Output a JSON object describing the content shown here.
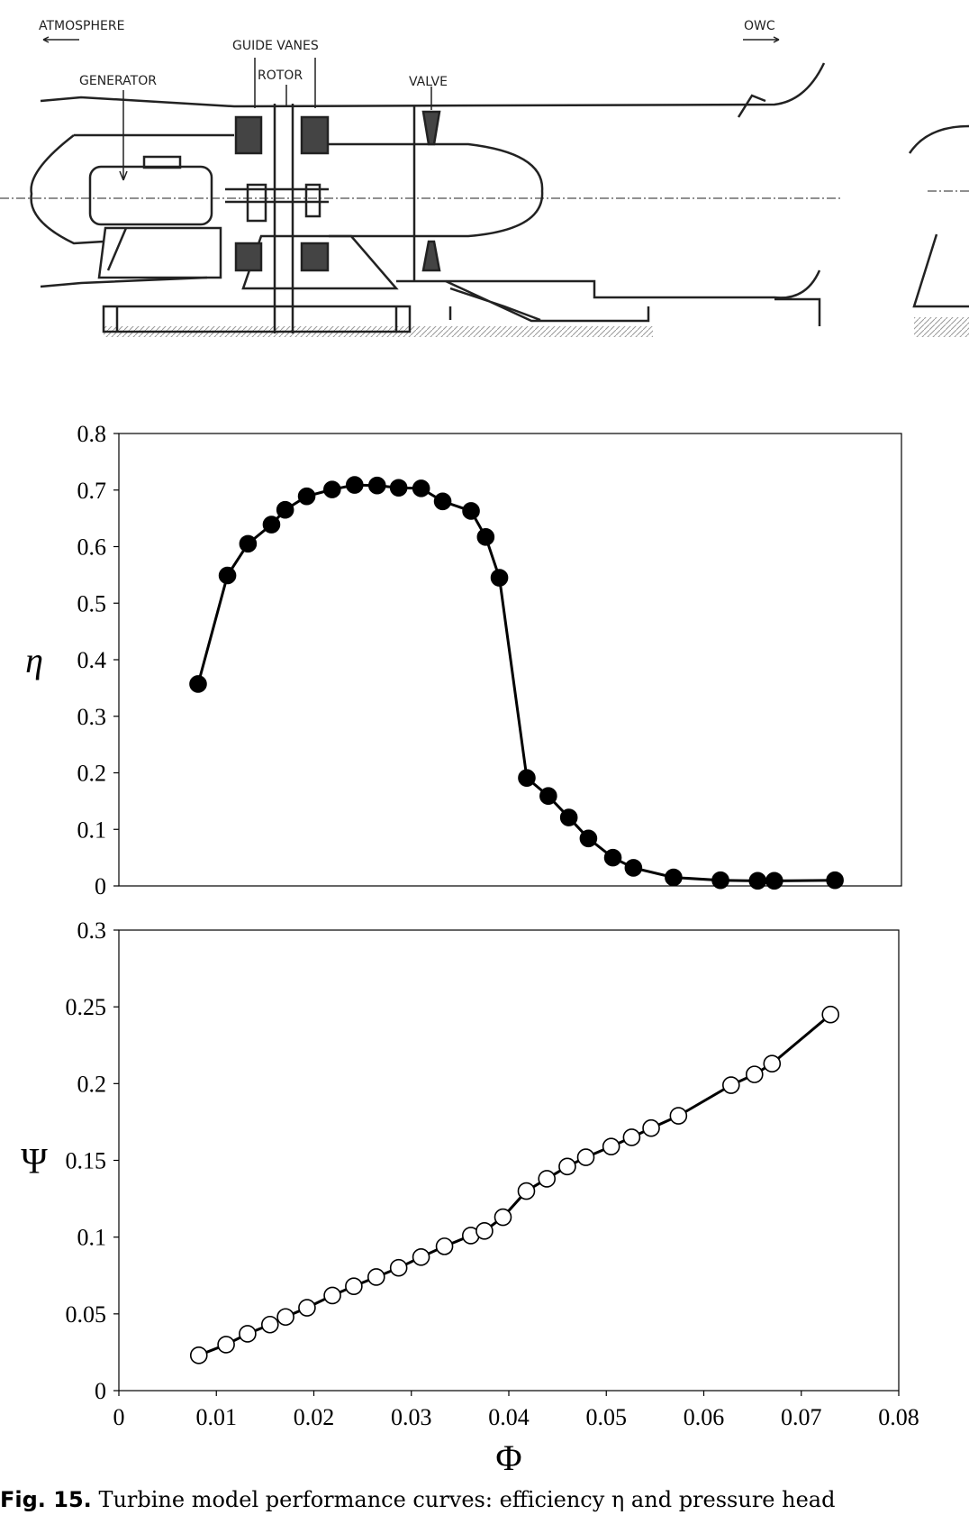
{
  "diagram": {
    "labels": {
      "atmosphere": "ATMOSPHERE",
      "owc": "OWC",
      "guide_vanes": "GUIDE VANES",
      "generator": "GENERATOR",
      "rotor": "ROTOR",
      "valve": "VALVE"
    }
  },
  "chart_data": [
    {
      "type": "line",
      "y_label": "η",
      "xlim": [
        0,
        0.08
      ],
      "ylim": [
        0,
        0.8
      ],
      "yticks": [
        0,
        0.1,
        0.2,
        0.3,
        0.4,
        0.5,
        0.6,
        0.7,
        0.8
      ],
      "marker": "filled",
      "series": [
        {
          "color": "#000000",
          "x": [
            0.0081,
            0.0111,
            0.0132,
            0.0156,
            0.017,
            0.0192,
            0.0218,
            0.0241,
            0.0264,
            0.0286,
            0.0309,
            0.0331,
            0.036,
            0.0375,
            0.0389,
            0.0417,
            0.0439,
            0.046,
            0.048,
            0.0505,
            0.0526,
            0.0567,
            0.0615,
            0.0653,
            0.067,
            0.0732
          ],
          "values": [
            0.357,
            0.549,
            0.605,
            0.639,
            0.665,
            0.689,
            0.701,
            0.709,
            0.708,
            0.704,
            0.703,
            0.68,
            0.663,
            0.617,
            0.545,
            0.191,
            0.159,
            0.121,
            0.084,
            0.05,
            0.032,
            0.015,
            0.01,
            0.009,
            0.009,
            0.01
          ]
        }
      ]
    },
    {
      "type": "line",
      "x_label": "Φ",
      "y_label": "Ψ",
      "xlim": [
        0,
        0.08
      ],
      "ylim": [
        0,
        0.3
      ],
      "xticks": [
        0,
        0.01,
        0.02,
        0.03,
        0.04,
        0.05,
        0.06,
        0.07,
        0.08
      ],
      "yticks": [
        0,
        0.05,
        0.1,
        0.15,
        0.2,
        0.25,
        0.3
      ],
      "marker": "open",
      "series": [
        {
          "color": "#000000",
          "x": [
            0.0082,
            0.011,
            0.0132,
            0.0155,
            0.0171,
            0.0193,
            0.0219,
            0.0241,
            0.0264,
            0.0287,
            0.031,
            0.0334,
            0.0361,
            0.0375,
            0.0394,
            0.0418,
            0.0439,
            0.046,
            0.0479,
            0.0505,
            0.0526,
            0.0546,
            0.0574,
            0.0628,
            0.0652,
            0.067,
            0.073
          ],
          "values": [
            0.023,
            0.03,
            0.037,
            0.043,
            0.048,
            0.054,
            0.062,
            0.068,
            0.074,
            0.08,
            0.087,
            0.094,
            0.101,
            0.104,
            0.113,
            0.13,
            0.138,
            0.146,
            0.152,
            0.159,
            0.165,
            0.171,
            0.179,
            0.199,
            0.206,
            0.213,
            0.245
          ]
        }
      ]
    }
  ],
  "caption": {
    "label": "Fig. 15.",
    "text": "Turbine model performance curves: efficiency η and pressure head"
  }
}
